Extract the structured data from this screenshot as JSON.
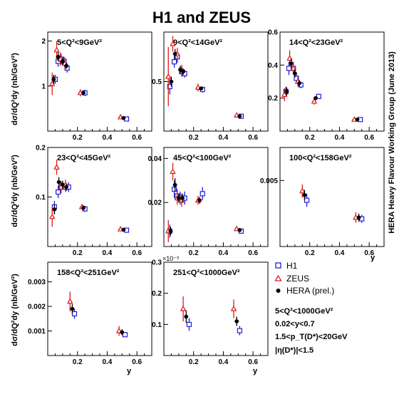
{
  "figure": {
    "title": "H1 and ZEUS",
    "side_text": "HERA Heavy Flavour Working Group  (June 2013)",
    "y_axis_label": "dσ/dQ²dy (nb/GeV²)",
    "x_axis_label": "y",
    "legend": {
      "h1": "H1",
      "zeus": "ZEUS",
      "hera": "HERA (prel.)"
    },
    "conditions": [
      "5<Q²<1000GeV²",
      "0.02<y<0.7",
      "1.5<p_T(D*)<20GeV",
      "|η(D*)|<1.5"
    ],
    "colors": {
      "h1": "#1f1fd6",
      "zeus": "#e01a1a",
      "hera": "#000000",
      "axis": "#000000"
    }
  },
  "chart_data": [
    {
      "type": "scatter",
      "title": "5<Q²<9GeV²",
      "xlim": [
        0,
        0.7
      ],
      "ylim": [
        0,
        2.2
      ],
      "xticks": [
        "0.2",
        "0.4",
        "0.6"
      ],
      "yticks": [
        "1",
        "2"
      ],
      "series": [
        {
          "name": "H1",
          "points": [
            [
              0.05,
              1.15,
              0.1
            ],
            [
              0.07,
              1.55,
              0.12
            ],
            [
              0.09,
              1.6,
              0.12
            ],
            [
              0.11,
              1.55,
              0.1
            ],
            [
              0.13,
              1.4,
              0.1
            ],
            [
              0.25,
              0.85,
              0.07
            ],
            [
              0.53,
              0.27,
              0.04
            ]
          ]
        },
        {
          "name": "ZEUS",
          "points": [
            [
              0.03,
              1.05,
              0.25
            ],
            [
              0.06,
              1.8,
              0.2
            ],
            [
              0.085,
              1.6,
              0.15
            ],
            [
              0.115,
              1.5,
              0.12
            ],
            [
              0.22,
              0.85,
              0.08
            ],
            [
              0.49,
              0.31,
              0.04
            ]
          ]
        },
        {
          "name": "HERA (prel.)",
          "points": [
            [
              0.04,
              1.15,
              0.1
            ],
            [
              0.07,
              1.65,
              0.1
            ],
            [
              0.1,
              1.55,
              0.08
            ],
            [
              0.125,
              1.45,
              0.07
            ],
            [
              0.24,
              0.85,
              0.05
            ],
            [
              0.51,
              0.29,
              0.03
            ]
          ]
        }
      ]
    },
    {
      "type": "scatter",
      "title": "9<Q²<14GeV²",
      "xlim": [
        0,
        0.7
      ],
      "ylim": [
        0,
        1.0
      ],
      "xticks": [
        "0.2",
        "0.4",
        "0.6"
      ],
      "yticks": [
        "0.5"
      ],
      "series": [
        {
          "name": "H1",
          "points": [
            [
              0.04,
              0.45,
              0.08
            ],
            [
              0.07,
              0.7,
              0.06
            ],
            [
              0.09,
              0.75,
              0.06
            ],
            [
              0.12,
              0.6,
              0.05
            ],
            [
              0.14,
              0.58,
              0.04
            ],
            [
              0.26,
              0.42,
              0.03
            ],
            [
              0.52,
              0.15,
              0.02
            ]
          ]
        },
        {
          "name": "ZEUS",
          "points": [
            [
              0.03,
              0.55,
              0.3
            ],
            [
              0.06,
              0.88,
              0.08
            ],
            [
              0.09,
              0.78,
              0.06
            ],
            [
              0.12,
              0.62,
              0.05
            ],
            [
              0.23,
              0.44,
              0.04
            ],
            [
              0.49,
              0.16,
              0.02
            ]
          ]
        },
        {
          "name": "HERA (prel.)",
          "points": [
            [
              0.05,
              0.5,
              0.05
            ],
            [
              0.075,
              0.78,
              0.05
            ],
            [
              0.11,
              0.62,
              0.04
            ],
            [
              0.13,
              0.6,
              0.03
            ],
            [
              0.25,
              0.43,
              0.02
            ],
            [
              0.51,
              0.15,
              0.015
            ]
          ]
        }
      ]
    },
    {
      "type": "scatter",
      "title": "14<Q²<23GeV²",
      "xlim": [
        0,
        0.7
      ],
      "ylim": [
        0,
        0.6
      ],
      "xticks": [
        "0.2",
        "0.4",
        "0.6"
      ],
      "yticks": [
        "0.2",
        "0.4",
        "0.6"
      ],
      "series": [
        {
          "name": "H1",
          "points": [
            [
              0.04,
              0.24,
              0.03
            ],
            [
              0.06,
              0.38,
              0.04
            ],
            [
              0.09,
              0.38,
              0.03
            ],
            [
              0.11,
              0.32,
              0.03
            ],
            [
              0.14,
              0.28,
              0.02
            ],
            [
              0.26,
              0.21,
              0.015
            ],
            [
              0.54,
              0.07,
              0.01
            ]
          ]
        },
        {
          "name": "ZEUS",
          "points": [
            [
              0.03,
              0.22,
              0.04
            ],
            [
              0.065,
              0.44,
              0.05
            ],
            [
              0.09,
              0.38,
              0.04
            ],
            [
              0.12,
              0.3,
              0.03
            ],
            [
              0.23,
              0.18,
              0.02
            ],
            [
              0.5,
              0.07,
              0.01
            ]
          ]
        },
        {
          "name": "HERA (prel.)",
          "points": [
            [
              0.045,
              0.24,
              0.025
            ],
            [
              0.075,
              0.41,
              0.03
            ],
            [
              0.1,
              0.35,
              0.025
            ],
            [
              0.13,
              0.29,
              0.02
            ],
            [
              0.24,
              0.2,
              0.012
            ],
            [
              0.52,
              0.07,
              0.008
            ]
          ]
        }
      ]
    },
    {
      "type": "scatter",
      "title": "23<Q²<45GeV²",
      "xlim": [
        0,
        0.7
      ],
      "ylim": [
        0,
        0.2
      ],
      "xticks": [
        "0.2",
        "0.4",
        "0.6"
      ],
      "yticks": [
        "0.1",
        "0.2"
      ],
      "series": [
        {
          "name": "H1",
          "points": [
            [
              0.045,
              0.08,
              0.012
            ],
            [
              0.07,
              0.11,
              0.012
            ],
            [
              0.09,
              0.12,
              0.012
            ],
            [
              0.12,
              0.12,
              0.01
            ],
            [
              0.14,
              0.12,
              0.01
            ],
            [
              0.25,
              0.076,
              0.006
            ],
            [
              0.53,
              0.033,
              0.004
            ]
          ]
        },
        {
          "name": "ZEUS",
          "points": [
            [
              0.03,
              0.06,
              0.02
            ],
            [
              0.06,
              0.16,
              0.015
            ],
            [
              0.09,
              0.12,
              0.012
            ],
            [
              0.12,
              0.125,
              0.01
            ],
            [
              0.23,
              0.08,
              0.005
            ],
            [
              0.49,
              0.035,
              0.004
            ]
          ]
        },
        {
          "name": "HERA (prel.)",
          "points": [
            [
              0.045,
              0.075,
              0.01
            ],
            [
              0.075,
              0.13,
              0.01
            ],
            [
              0.1,
              0.125,
              0.008
            ],
            [
              0.125,
              0.12,
              0.007
            ],
            [
              0.24,
              0.078,
              0.005
            ],
            [
              0.51,
              0.034,
              0.003
            ]
          ]
        }
      ]
    },
    {
      "type": "scatter",
      "title": "45<Q²<100GeV²",
      "xlim": [
        0,
        0.7
      ],
      "ylim": [
        0,
        0.045
      ],
      "xticks": [
        "0.2",
        "0.4",
        "0.6"
      ],
      "yticks": [
        "0.02",
        "0.04"
      ],
      "series": [
        {
          "name": "H1",
          "points": [
            [
              0.04,
              0.007,
              0.003
            ],
            [
              0.07,
              0.026,
              0.004
            ],
            [
              0.09,
              0.023,
              0.003
            ],
            [
              0.11,
              0.022,
              0.003
            ],
            [
              0.14,
              0.022,
              0.003
            ],
            [
              0.26,
              0.024,
              0.003
            ],
            [
              0.52,
              0.007,
              0.001
            ]
          ]
        },
        {
          "name": "ZEUS",
          "points": [
            [
              0.03,
              0.007,
              0.005
            ],
            [
              0.06,
              0.034,
              0.004
            ],
            [
              0.09,
              0.022,
              0.003
            ],
            [
              0.12,
              0.021,
              0.003
            ],
            [
              0.23,
              0.021,
              0.002
            ],
            [
              0.49,
              0.008,
              0.001
            ]
          ]
        },
        {
          "name": "HERA (prel.)",
          "points": [
            [
              0.045,
              0.007,
              0.002
            ],
            [
              0.075,
              0.028,
              0.003
            ],
            [
              0.1,
              0.022,
              0.002
            ],
            [
              0.125,
              0.022,
              0.002
            ],
            [
              0.24,
              0.021,
              0.0015
            ],
            [
              0.51,
              0.0075,
              0.0008
            ]
          ]
        }
      ]
    },
    {
      "type": "scatter",
      "title": "100<Q²<158GeV²",
      "xlim": [
        0,
        0.7
      ],
      "ylim": [
        0,
        0.0075
      ],
      "xticks": [
        "0.2",
        "0.4",
        "0.6"
      ],
      "yticks": [
        "0.005"
      ],
      "series": [
        {
          "name": "H1",
          "points": [
            [
              0.18,
              0.0035,
              0.0005
            ],
            [
              0.55,
              0.0021,
              0.0003
            ]
          ]
        },
        {
          "name": "ZEUS",
          "points": [
            [
              0.15,
              0.0042,
              0.0005
            ],
            [
              0.51,
              0.0022,
              0.0004
            ]
          ]
        },
        {
          "name": "HERA (prel.)",
          "points": [
            [
              0.165,
              0.0039,
              0.0004
            ],
            [
              0.53,
              0.0022,
              0.0003
            ]
          ]
        }
      ]
    },
    {
      "type": "scatter",
      "title": "158<Q²<251GeV²",
      "xlim": [
        0,
        0.7
      ],
      "ylim": [
        0,
        0.0038
      ],
      "xticks": [
        "0.2",
        "0.4",
        "0.6"
      ],
      "yticks": [
        "0.001",
        "0.002",
        "0.003"
      ],
      "series": [
        {
          "name": "H1",
          "points": [
            [
              0.18,
              0.0017,
              0.0002
            ],
            [
              0.52,
              0.00085,
              0.0001
            ]
          ]
        },
        {
          "name": "ZEUS",
          "points": [
            [
              0.15,
              0.0022,
              0.0004
            ],
            [
              0.48,
              0.001,
              0.0002
            ]
          ]
        },
        {
          "name": "HERA (prel.)",
          "points": [
            [
              0.165,
              0.0019,
              0.0002
            ],
            [
              0.5,
              0.00095,
              0.00012
            ]
          ]
        }
      ]
    },
    {
      "type": "scatter",
      "title": "251<Q²<1000GeV²",
      "xlim": [
        0,
        0.7
      ],
      "ylim": [
        0,
        0.0003
      ],
      "xticks": [
        "0.2",
        "0.4",
        "0.6"
      ],
      "yticks": [
        "0.1",
        "0.2",
        "0.3"
      ],
      "y_exponent": "×10⁻³",
      "series": [
        {
          "name": "H1",
          "points": [
            [
              0.17,
              0.0001,
              2e-05
            ],
            [
              0.51,
              8e-05,
              1.5e-05
            ]
          ]
        },
        {
          "name": "ZEUS",
          "points": [
            [
              0.13,
              0.00015,
              4e-05
            ],
            [
              0.47,
              0.00015,
              3e-05
            ]
          ]
        },
        {
          "name": "HERA (prel.)",
          "points": [
            [
              0.15,
              0.000125,
              2e-05
            ],
            [
              0.49,
              0.00011,
              1.5e-05
            ]
          ]
        }
      ]
    }
  ]
}
